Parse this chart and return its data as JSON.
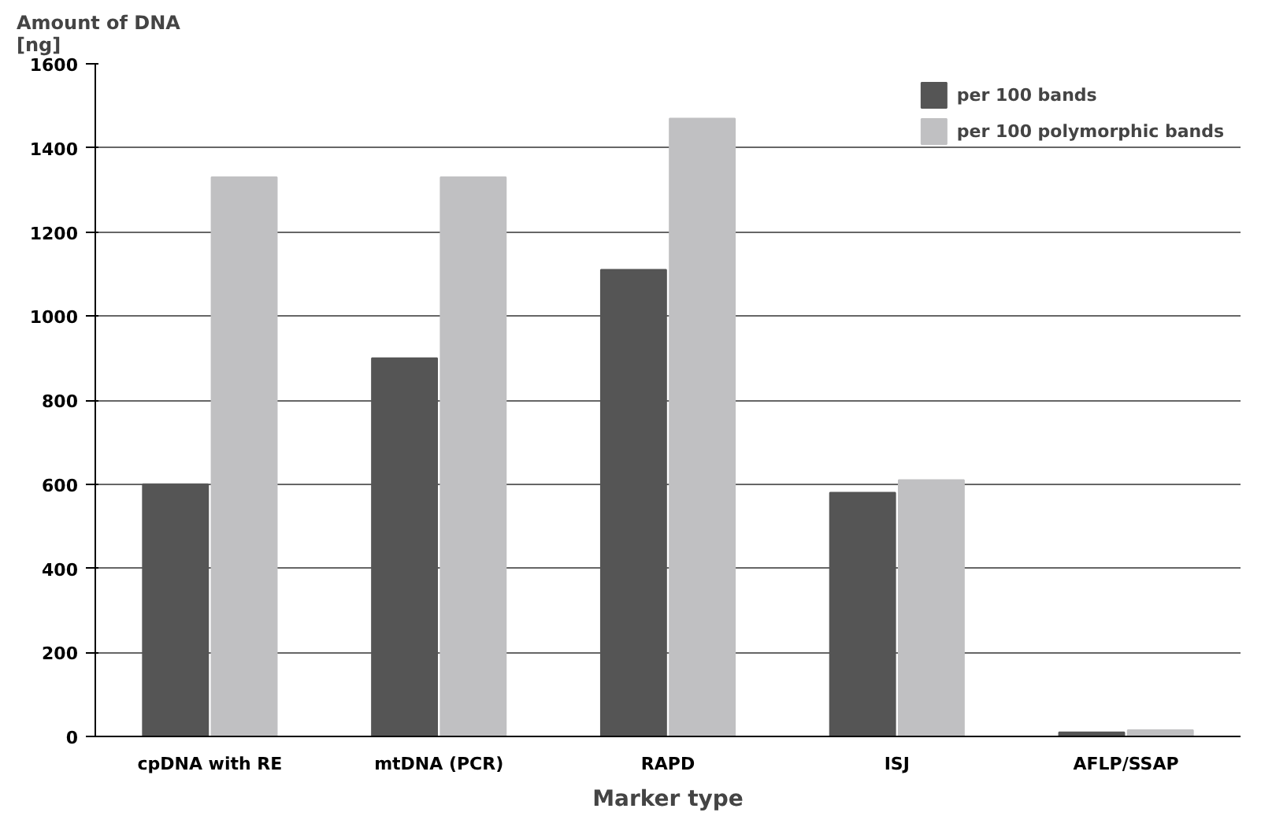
{
  "chart_data": {
    "type": "bar",
    "xlabel": "Marker type",
    "ylabel": "Amount of DNA\n[ng]",
    "categories": [
      "cpDNA with RE",
      "mtDNA (PCR)",
      "RAPD",
      "ISJ",
      "AFLP/SSAP"
    ],
    "series": [
      {
        "name": "per 100 bands",
        "color": "#555555",
        "values": [
          600,
          900,
          1110,
          580,
          10
        ]
      },
      {
        "name": "per 100 polymorphic bands",
        "color": "#c0c0c2",
        "values": [
          1330,
          1330,
          1470,
          610,
          15
        ]
      }
    ],
    "ylim": [
      0,
      1600
    ],
    "yticks": [
      0,
      200,
      400,
      600,
      800,
      1000,
      1200,
      1400,
      1600
    ],
    "grid": "y",
    "legend": "top right"
  }
}
